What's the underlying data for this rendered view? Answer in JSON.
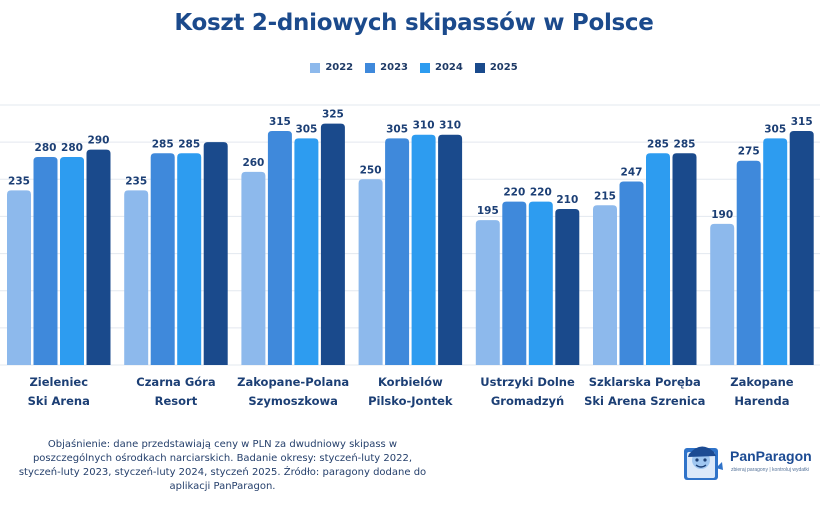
{
  "title": "Koszt 2-dniowych skipassów w Polsce",
  "chart_data": {
    "type": "bar",
    "categories": [
      [
        "Zieleniec",
        "Ski Arena"
      ],
      [
        "Czarna Góra",
        "Resort"
      ],
      [
        "Zakopane-Polana",
        "Szymoszkowa"
      ],
      [
        "Korbielów",
        "Pilsko-Jontek"
      ],
      [
        "Ustrzyki  Dolne",
        "Gromadzyń"
      ],
      [
        "Szklarska Poręba",
        "Ski Arena Szrenica"
      ],
      [
        "Zakopane",
        "Harenda"
      ]
    ],
    "series": [
      {
        "name": "2022",
        "color": "#8db9ec",
        "values": [
          235,
          235,
          260,
          250,
          195,
          215,
          190
        ],
        "labels": [
          "235",
          "235",
          "260",
          "250",
          "195",
          "215",
          "190"
        ]
      },
      {
        "name": "2023",
        "color": "#3f89db",
        "values": [
          280,
          285,
          315,
          305,
          220,
          247,
          275
        ],
        "labels": [
          "280",
          "285",
          "315",
          "305",
          "220",
          "247",
          "275"
        ]
      },
      {
        "name": "2024",
        "color": "#2d9cf0",
        "values": [
          280,
          285,
          305,
          310,
          220,
          285,
          305
        ],
        "labels": [
          "280",
          "285",
          "305",
          "310",
          "220",
          "285",
          "305"
        ]
      },
      {
        "name": "2025",
        "color": "#1a4a8c",
        "values": [
          290,
          300,
          325,
          310,
          210,
          285,
          315
        ],
        "labels": [
          "290",
          "",
          "325",
          "310",
          "210",
          "285",
          "315"
        ]
      }
    ],
    "ylim": [
      0,
      350
    ],
    "grid": true,
    "legend_position": "top"
  },
  "footnote": [
    "Objaśnienie: dane przedstawiają ceny w PLN za dwudniowy skipass w",
    "poszczególnych ośrodkach narciarskich. Badanie okresy: styczeń-luty 2022,",
    "styczeń-luty 2023, styczeń-luty 2024, styczeń 2025. Źródło: paragony dodane do",
    "aplikacji PanParagon."
  ],
  "brand": {
    "name": "PanParagon",
    "tagline": "zbieraj paragony | kontroluj wydatki"
  }
}
